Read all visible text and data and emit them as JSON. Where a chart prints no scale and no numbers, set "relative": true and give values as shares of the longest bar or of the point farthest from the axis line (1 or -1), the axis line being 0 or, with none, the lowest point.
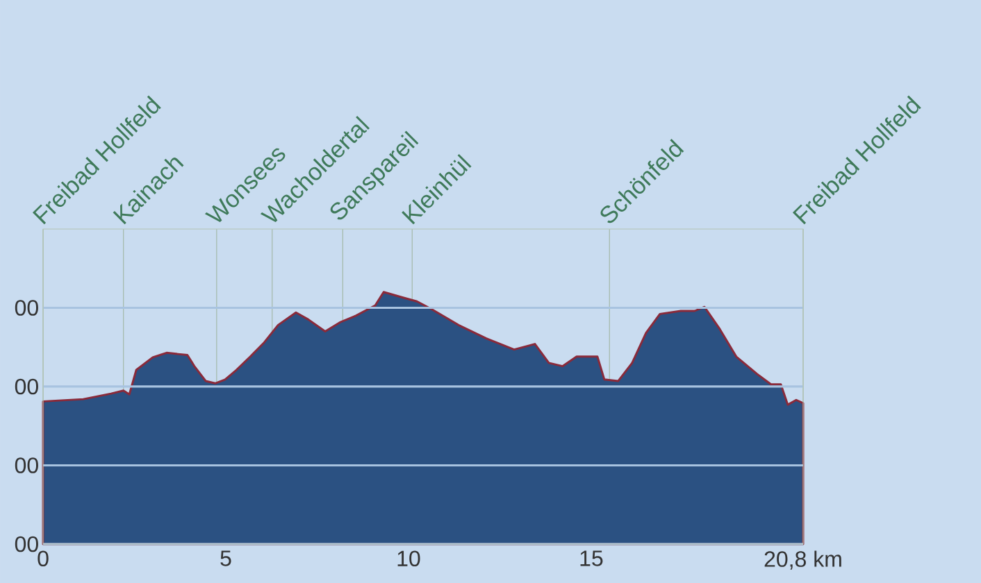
{
  "chart_data": {
    "type": "area",
    "relative": true,
    "x": [
      0,
      1.1,
      1.86,
      2.2,
      2.36,
      2.55,
      3.0,
      3.38,
      3.95,
      4.14,
      4.45,
      4.71,
      4.98,
      5.29,
      5.67,
      6.05,
      6.43,
      6.92,
      7.26,
      7.72,
      8.14,
      8.56,
      9.09,
      9.32,
      9.85,
      10.23,
      10.61,
      11.37,
      12.13,
      12.89,
      13.46,
      13.84,
      14.22,
      14.6,
      15.17,
      15.36,
      15.74,
      16.12,
      16.5,
      16.88,
      17.45,
      17.83,
      18.1,
      18.52,
      18.97,
      19.54,
      19.92,
      20.19,
      20.38,
      20.61,
      20.8
    ],
    "series": [
      {
        "color": "#2b5182",
        "values": [
          0.566,
          0.575,
          0.597,
          0.609,
          0.594,
          0.691,
          0.741,
          0.759,
          0.75,
          0.706,
          0.647,
          0.638,
          0.653,
          0.691,
          0.744,
          0.8,
          0.869,
          0.919,
          0.891,
          0.844,
          0.881,
          0.906,
          0.947,
          1,
          0.978,
          0.963,
          0.934,
          0.869,
          0.816,
          0.772,
          0.794,
          0.719,
          0.706,
          0.744,
          0.744,
          0.653,
          0.647,
          0.719,
          0.838,
          0.913,
          0.925,
          0.925,
          0.941,
          0.853,
          0.744,
          0.675,
          0.634,
          0.634,
          0.553,
          0.572,
          0.559
        ]
      }
    ],
    "xlim": [
      0,
      20.8
    ],
    "annotations": [
      "00",
      "00",
      "00",
      "00"
    ],
    "xticks": [
      0,
      5,
      10,
      15,
      {
        "value": 20.8,
        "label": "20,8 km"
      }
    ],
    "ref_lines": [
      {
        "axis": "y",
        "value": 0,
        "color": "#a8c3e0"
      },
      {
        "axis": "y",
        "value": 0.3125,
        "color": "#a8c3e0"
      },
      {
        "axis": "y",
        "value": 0.625,
        "color": "#a8c3e0"
      },
      {
        "axis": "y",
        "value": 0.9375,
        "color": "#a8c3e0"
      },
      {
        "axis": "x",
        "value": 0,
        "label": "Freibad Hollfeld"
      },
      {
        "axis": "x",
        "value": 2.2,
        "label": "Kainach"
      },
      {
        "axis": "x",
        "value": 4.75,
        "label": "Wonsees"
      },
      {
        "axis": "x",
        "value": 6.27,
        "label": "Wacholdertal"
      },
      {
        "axis": "x",
        "value": 8.2,
        "label": "Sanspareil"
      },
      {
        "axis": "x",
        "value": 10.1,
        "label": "Kleinhül"
      },
      {
        "axis": "x",
        "value": 15.5,
        "label": "Schönfeld"
      },
      {
        "axis": "x",
        "value": 20.8,
        "label": "Freibad Hollfeld"
      }
    ]
  }
}
